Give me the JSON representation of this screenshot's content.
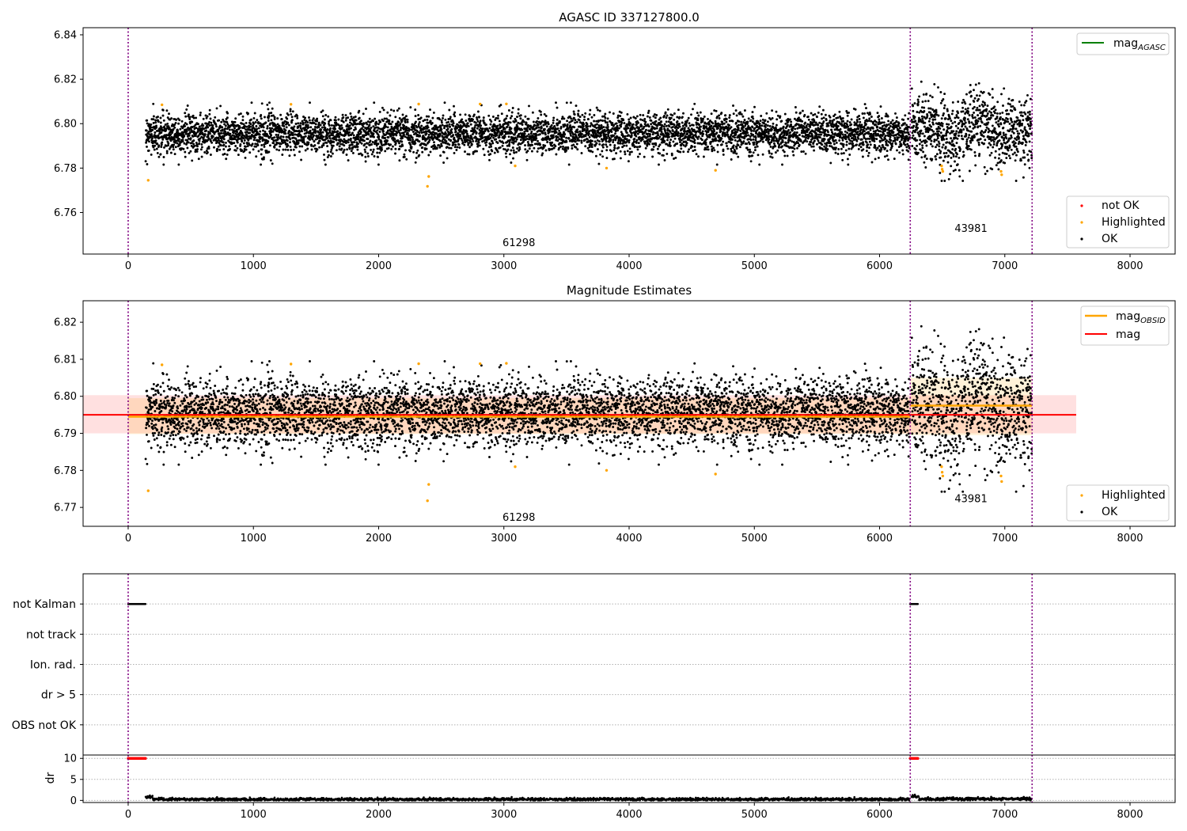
{
  "chart_data": [
    {
      "type": "scatter",
      "title": "AGASC ID 337127800.0",
      "xlabel": "",
      "ylabel": "",
      "xlim": [
        -360,
        8360
      ],
      "ylim": [
        6.7413,
        6.8432
      ],
      "xticks": [
        0,
        1000,
        2000,
        3000,
        4000,
        5000,
        6000,
        7000,
        8000
      ],
      "yticks": [
        6.76,
        6.78,
        6.8,
        6.82,
        6.84
      ],
      "ytick_labels": [
        "6.76",
        "6.78",
        "6.80",
        "6.82",
        "6.84"
      ],
      "legend_top": {
        "position": "top-right",
        "entries": [
          {
            "label": "mag",
            "sub": "AGASC",
            "color": "#008000"
          }
        ]
      },
      "legend_bottom": {
        "position": "bottom-right",
        "entries": [
          {
            "label": "not OK",
            "color": "#ff0000"
          },
          {
            "label": "Highlighted",
            "color": "#ffa500"
          },
          {
            "label": "OK",
            "color": "#000000"
          }
        ]
      },
      "obsid_boundaries": [
        0,
        6245,
        7218
      ],
      "obsid_labels": [
        {
          "text": "61298",
          "x": 3120,
          "y": 6.7448
        },
        {
          "text": "43981",
          "x": 6730,
          "y": 6.7513
        }
      ],
      "series": [
        {
          "name": "OK",
          "segments": [
            {
              "x_start": 140,
              "x_end": 6240,
              "mean": 6.7955,
              "sigma": 0.0045
            },
            {
              "x_start": 6255,
              "x_end": 7215,
              "mean": 6.7975,
              "sigma": 0.0075
            }
          ]
        },
        {
          "name": "Highlighted",
          "x": [
            160,
            270,
            1300,
            2320,
            2390,
            2400,
            2810,
            3020,
            3090,
            3820,
            4690,
            6495,
            6500,
            6505,
            6970,
            6975
          ],
          "y": [
            6.7745,
            6.8085,
            6.8087,
            6.8088,
            6.7718,
            6.7762,
            6.8088,
            6.8089,
            6.781,
            6.78,
            6.779,
            6.781,
            6.7795,
            6.7785,
            6.7785,
            6.777
          ]
        }
      ]
    },
    {
      "type": "scatter",
      "title": "Magnitude Estimates",
      "xlabel": "",
      "ylabel": "",
      "xlim": [
        -360,
        8360
      ],
      "ylim": [
        6.7649,
        6.8258
      ],
      "xticks": [
        0,
        1000,
        2000,
        3000,
        4000,
        5000,
        6000,
        7000,
        8000
      ],
      "yticks": [
        6.77,
        6.78,
        6.79,
        6.8,
        6.81,
        6.82
      ],
      "ytick_labels": [
        "6.77",
        "6.78",
        "6.79",
        "6.80",
        "6.81",
        "6.82"
      ],
      "legend_top": {
        "position": "top-right",
        "entries": [
          {
            "label": "mag",
            "sub": "OBSID",
            "color": "#ffa500"
          },
          {
            "label": "mag",
            "sub": "",
            "color": "#ff0000"
          }
        ]
      },
      "legend_bottom": {
        "position": "bottom-right",
        "entries": [
          {
            "label": "Highlighted",
            "color": "#ffa500"
          },
          {
            "label": "OK",
            "color": "#000000"
          }
        ]
      },
      "mag": 6.795,
      "mag_band": [
        6.79,
        6.8003
      ],
      "mag_x_range": [
        -360,
        7570
      ],
      "obsid_mags": [
        {
          "x_start": 0,
          "x_end": 6245,
          "mag": 6.7945
        },
        {
          "x_start": 6245,
          "x_end": 7218,
          "mag": 6.7975
        }
      ],
      "obsid_bands": [
        {
          "x_start": 0,
          "x_end": 6245,
          "lo": 6.7898,
          "hi": 6.7995
        },
        {
          "x_start": 6245,
          "x_end": 7218,
          "lo": 6.7895,
          "hi": 6.805
        }
      ],
      "obsid_boundaries": [
        0,
        6245,
        7218
      ],
      "obsid_labels": [
        {
          "text": "61298",
          "x": 3120,
          "y": 6.7664
        },
        {
          "text": "43981",
          "x": 6730,
          "y": 6.7714
        }
      ],
      "series": [
        {
          "name": "OK",
          "segments": [
            {
              "x_start": 140,
              "x_end": 6240,
              "mean": 6.7955,
              "sigma": 0.0045
            },
            {
              "x_start": 6255,
              "x_end": 7215,
              "mean": 6.7975,
              "sigma": 0.0075
            }
          ]
        },
        {
          "name": "Highlighted",
          "x": [
            160,
            270,
            1300,
            2320,
            2390,
            2400,
            2810,
            3020,
            3090,
            3820,
            4690,
            6495,
            6500,
            6505,
            6970,
            6975
          ],
          "y": [
            6.7745,
            6.8085,
            6.8087,
            6.8088,
            6.7718,
            6.7762,
            6.8088,
            6.8089,
            6.781,
            6.78,
            6.779,
            6.781,
            6.7795,
            6.7785,
            6.7785,
            6.777
          ]
        }
      ]
    },
    {
      "type": "scatter",
      "title": "",
      "xlabel": "",
      "ylabel": "",
      "xlim": [
        -360,
        8360
      ],
      "flag_categories": [
        "not Kalman",
        "not track",
        "Ion. rad.",
        "dr > 5",
        "OBS not OK"
      ],
      "flagged_ranges": [
        {
          "category": "not Kalman",
          "x_start": 0,
          "x_end": 140
        },
        {
          "category": "not Kalman",
          "x_start": 6245,
          "x_end": 6310
        }
      ],
      "obsid_boundaries": [
        0,
        6245,
        7218
      ]
    },
    {
      "type": "scatter",
      "title": "",
      "xlabel": "",
      "ylabel": "dr",
      "xlim": [
        -360,
        8360
      ],
      "ylim": [
        -0.5,
        10.8
      ],
      "xticks": [
        0,
        1000,
        2000,
        3000,
        4000,
        5000,
        6000,
        7000,
        8000
      ],
      "yticks": [
        0,
        5,
        10
      ],
      "ytick_labels": [
        "0",
        "5",
        "10"
      ],
      "clipped_value": 10,
      "clipped_ranges": [
        {
          "x_start": 0,
          "x_end": 140
        },
        {
          "x_start": 6245,
          "x_end": 6310
        }
      ],
      "series": [
        {
          "name": "dr",
          "segments": [
            {
              "x_start": 140,
              "x_end": 6240,
              "mean": 0.25
            },
            {
              "x_start": 6255,
              "x_end": 7215,
              "mean": 0.35
            }
          ]
        }
      ],
      "obsid_boundaries": [
        0,
        6245,
        7218
      ]
    }
  ]
}
